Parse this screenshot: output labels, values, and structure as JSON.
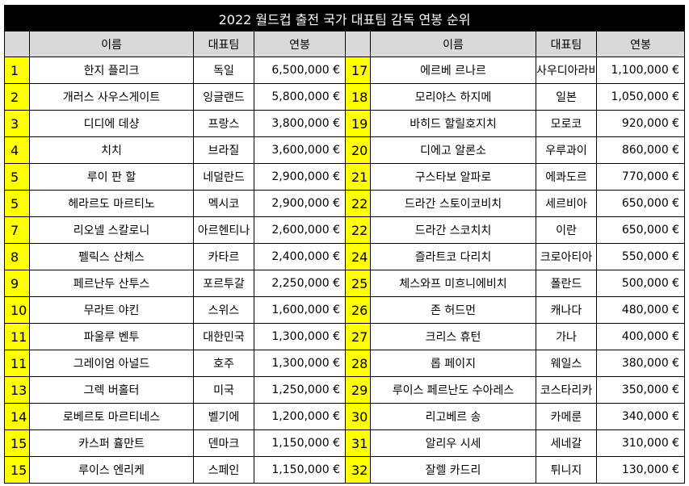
{
  "title": "2022 월드컵 출전 국가 대표팀 감독 연봉 순위",
  "headers": {
    "name": "이름",
    "team": "대표팀",
    "salary": "연봉"
  },
  "rows": [
    {
      "left": {
        "rank": "1",
        "name": "한지 플리크",
        "team": "독일",
        "salary": "6,500,000 €"
      },
      "right": {
        "rank": "17",
        "name": "에르베 르나르",
        "team": "사우디아라비아",
        "salary": "1,100,000 €"
      }
    },
    {
      "left": {
        "rank": "2",
        "name": "개러스 사우스게이트",
        "team": "잉글랜드",
        "salary": "5,800,000 €"
      },
      "right": {
        "rank": "18",
        "name": "모리야스 하지메",
        "team": "일본",
        "salary": "1,050,000 €"
      }
    },
    {
      "left": {
        "rank": "3",
        "name": "디디에 데샹",
        "team": "프랑스",
        "salary": "3,800,000 €"
      },
      "right": {
        "rank": "19",
        "name": "바히드 할릴호지치",
        "team": "모로코",
        "salary": "920,000 €"
      }
    },
    {
      "left": {
        "rank": "4",
        "name": "치치",
        "team": "브라질",
        "salary": "3,600,000 €"
      },
      "right": {
        "rank": "20",
        "name": "디에고 알론소",
        "team": "우루과이",
        "salary": "860,000 €"
      }
    },
    {
      "left": {
        "rank": "5",
        "name": "루이 판 할",
        "team": "네덜란드",
        "salary": "2,900,000 €"
      },
      "right": {
        "rank": "21",
        "name": "구스타보 알파로",
        "team": "에콰도르",
        "salary": "770,000 €"
      }
    },
    {
      "left": {
        "rank": "5",
        "name": "헤라르도 마르티노",
        "team": "멕시코",
        "salary": "2,900,000 €"
      },
      "right": {
        "rank": "22",
        "name": "드라간 스토이코비치",
        "team": "세르비아",
        "salary": "650,000 €"
      }
    },
    {
      "left": {
        "rank": "7",
        "name": "리오넬 스칼로니",
        "team": "아르헨티나",
        "salary": "2,600,000 €"
      },
      "right": {
        "rank": "22",
        "name": "드라간 스코치치",
        "team": "이란",
        "salary": "650,000 €"
      }
    },
    {
      "left": {
        "rank": "8",
        "name": "펠릭스 산체스",
        "team": "카타르",
        "salary": "2,400,000 €"
      },
      "right": {
        "rank": "24",
        "name": "즐라트코 다리치",
        "team": "크로아티아",
        "salary": "550,000 €"
      }
    },
    {
      "left": {
        "rank": "9",
        "name": "페르난두 산투스",
        "team": "포르투갈",
        "salary": "2,250,000 €"
      },
      "right": {
        "rank": "25",
        "name": "체스와프 미흐니에비치",
        "team": "폴란드",
        "salary": "500,000 €"
      }
    },
    {
      "left": {
        "rank": "10",
        "name": "무라트 야킨",
        "team": "스위스",
        "salary": "1,600,000 €"
      },
      "right": {
        "rank": "26",
        "name": "존 허드먼",
        "team": "캐나다",
        "salary": "480,000 €"
      }
    },
    {
      "left": {
        "rank": "11",
        "name": "파울루 벤투",
        "team": "대한민국",
        "salary": "1,300,000 €"
      },
      "right": {
        "rank": "27",
        "name": "크리스 휴턴",
        "team": "가나",
        "salary": "400,000 €"
      }
    },
    {
      "left": {
        "rank": "11",
        "name": "그레이엄 아널드",
        "team": "호주",
        "salary": "1,300,000 €"
      },
      "right": {
        "rank": "28",
        "name": "롭 페이지",
        "team": "웨일스",
        "salary": "380,000 €"
      }
    },
    {
      "left": {
        "rank": "13",
        "name": "그렉 버홀터",
        "team": "미국",
        "salary": "1,250,000 €"
      },
      "right": {
        "rank": "29",
        "name": "루이스 페르난도 수아레스",
        "team": "코스타리카",
        "salary": "350,000 €"
      }
    },
    {
      "left": {
        "rank": "14",
        "name": "로베르토 마르티네스",
        "team": "벨기에",
        "salary": "1,200,000 €"
      },
      "right": {
        "rank": "30",
        "name": "리고베르 송",
        "team": "카메룬",
        "salary": "340,000 €"
      }
    },
    {
      "left": {
        "rank": "15",
        "name": "카스퍼 휼만트",
        "team": "덴마크",
        "salary": "1,150,000 €"
      },
      "right": {
        "rank": "31",
        "name": "알리우 시세",
        "team": "세네갈",
        "salary": "310,000 €"
      }
    },
    {
      "left": {
        "rank": "15",
        "name": "루이스 엔리케",
        "team": "스페인",
        "salary": "1,150,000 €"
      },
      "right": {
        "rank": "32",
        "name": "잘렐 카드리",
        "team": "튀니지",
        "salary": "130,000 €"
      }
    }
  ],
  "colors": {
    "title_bg": "#000000",
    "header_bg": "#d9d9d9",
    "rank_bg": "#ffff00"
  }
}
